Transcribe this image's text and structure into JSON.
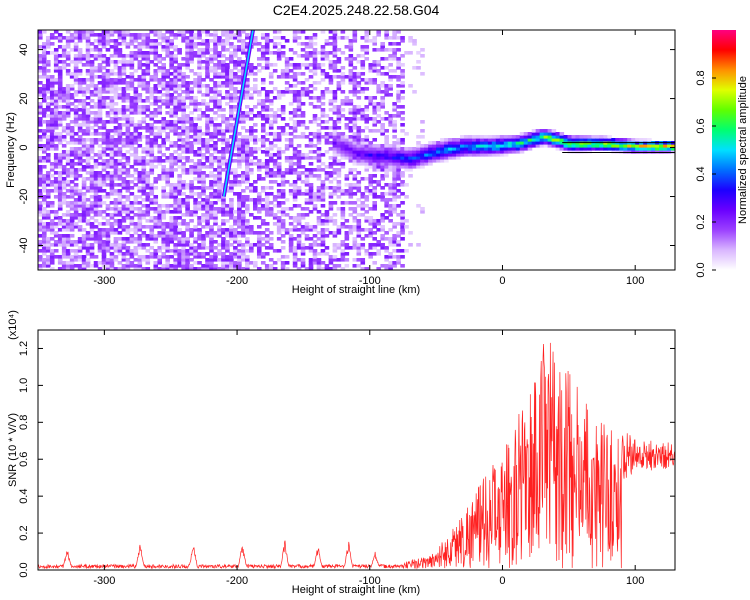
{
  "title": "C2E4.2025.248.22.58.G04",
  "chart_data": [
    {
      "type": "heatmap",
      "xlabel": "Height of straight line (km)",
      "ylabel": "Frequency (Hz)",
      "xlim": [
        -350,
        130
      ],
      "ylim": [
        -50,
        48
      ],
      "xticks": [
        -300,
        -200,
        -100,
        0,
        100
      ],
      "yticks": [
        -40,
        -20,
        0,
        20,
        40
      ],
      "grid": false,
      "noise_region_km": [
        -350,
        -75
      ],
      "signal_track": [
        {
          "x": -130,
          "y": 2
        },
        {
          "x": -110,
          "y": -3
        },
        {
          "x": -90,
          "y": -4
        },
        {
          "x": -70,
          "y": -5
        },
        {
          "x": -50,
          "y": -2
        },
        {
          "x": -30,
          "y": 0
        },
        {
          "x": -10,
          "y": 0
        },
        {
          "x": 10,
          "y": 1
        },
        {
          "x": 30,
          "y": 4
        },
        {
          "x": 50,
          "y": 1
        },
        {
          "x": 75,
          "y": 1
        },
        {
          "x": 100,
          "y": 0
        },
        {
          "x": 130,
          "y": 0
        }
      ],
      "streak": {
        "x_start": -210,
        "y_start": -20,
        "x_end": -188,
        "y_end": 48
      },
      "colorbar": {
        "label": "Normalized spectral amplitude",
        "range": [
          0,
          1
        ],
        "ticks": [
          0.0,
          0.2,
          0.4,
          0.6,
          0.8
        ],
        "tick_labels": [
          "0.0",
          "0.2",
          "0.4",
          "0.6",
          "0.8"
        ],
        "colors": [
          "#ffffff",
          "#d9b6ff",
          "#9b40ff",
          "#6a00ff",
          "#1c00ff",
          "#0070ff",
          "#00e0ff",
          "#00ff70",
          "#60ff00",
          "#e0ff00",
          "#ff9000",
          "#ff0000",
          "#ff0080"
        ]
      }
    },
    {
      "type": "line",
      "xlabel": "Height of straight line (km)",
      "ylabel": "SNR (10 * V/V)",
      "scale_label": "(x10⁴)",
      "xlim": [
        -350,
        130
      ],
      "ylim": [
        0,
        1.3
      ],
      "xticks": [
        -300,
        -200,
        -100,
        0,
        100
      ],
      "yticks": [
        0.0,
        0.2,
        0.4,
        0.6,
        0.8,
        1.0,
        1.2
      ],
      "ytick_labels": [
        "0.0",
        "0.2",
        "0.4",
        "0.6",
        "0.8",
        "1.0",
        "1.2"
      ],
      "grid": false,
      "color": "#ff2020",
      "baseline": 0.02,
      "spikes": [
        {
          "x": -328,
          "y": 0.1
        },
        {
          "x": -273,
          "y": 0.14
        },
        {
          "x": -233,
          "y": 0.14
        },
        {
          "x": -196,
          "y": 0.13
        },
        {
          "x": -164,
          "y": 0.15
        },
        {
          "x": -139,
          "y": 0.12
        },
        {
          "x": -116,
          "y": 0.15
        },
        {
          "x": -96,
          "y": 0.08
        }
      ],
      "envelope": [
        {
          "x": -75,
          "y": 0.04
        },
        {
          "x": -55,
          "y": 0.08
        },
        {
          "x": -40,
          "y": 0.2
        },
        {
          "x": -25,
          "y": 0.38
        },
        {
          "x": -10,
          "y": 0.55
        },
        {
          "x": 5,
          "y": 0.7
        },
        {
          "x": 20,
          "y": 1.0
        },
        {
          "x": 33,
          "y": 1.28
        },
        {
          "x": 50,
          "y": 1.1
        },
        {
          "x": 70,
          "y": 0.85
        },
        {
          "x": 90,
          "y": 0.72
        },
        {
          "x": 110,
          "y": 0.68
        },
        {
          "x": 130,
          "y": 0.66
        }
      ],
      "tail_mean": 0.62
    }
  ]
}
